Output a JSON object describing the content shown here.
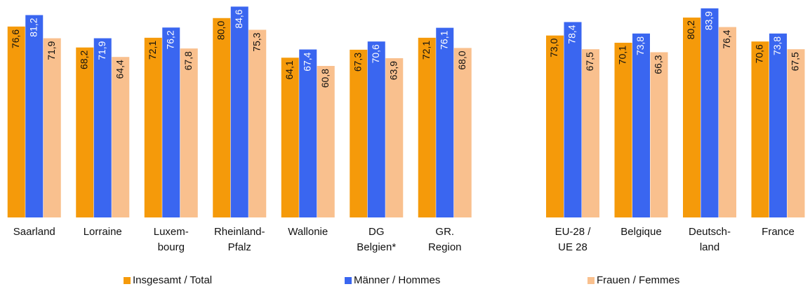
{
  "chart_data": {
    "type": "bar",
    "categories": [
      "Saarland",
      "Lorraine",
      "Luxem-\nbourg",
      "Rheinland-\nPfalz",
      "Wallonie",
      "DG\nBelgien*",
      "GR.\nRegion",
      "EU-28 /\nUE 28",
      "Belgique",
      "Deutsch-\nland",
      "France"
    ],
    "series": [
      {
        "name": "Insgesamt / Total",
        "color": "#f59a0a",
        "values": [
          76.6,
          68.2,
          72.1,
          80.0,
          64.1,
          67.3,
          72.1,
          73.0,
          70.1,
          80.2,
          70.6
        ],
        "value_labels": [
          "76,6",
          "68,2",
          "72,1",
          "80,0",
          "64,1",
          "67,3",
          "72,1",
          "73,0",
          "70,1",
          "80,2",
          "70,6"
        ]
      },
      {
        "name": "Männer / Hommes",
        "color": "#3a66f0",
        "values": [
          81.2,
          71.9,
          76.2,
          84.6,
          67.4,
          70.6,
          76.1,
          78.4,
          73.8,
          83.9,
          73.8
        ],
        "value_labels": [
          "81,2",
          "71,9",
          "76,2",
          "84,6",
          "67,4",
          "70,6",
          "76,1",
          "78,4",
          "73,8",
          "83,9",
          "73,8"
        ]
      },
      {
        "name": "Frauen / Femmes",
        "color": "#f9c08e",
        "values": [
          71.9,
          64.4,
          67.8,
          75.3,
          60.8,
          63.9,
          68.0,
          67.5,
          66.3,
          76.4,
          67.5
        ],
        "value_labels": [
          "71,9",
          "64,4",
          "67,8",
          "75,3",
          "60,8",
          "63,9",
          "68,0",
          "67,5",
          "66,3",
          "76,4",
          "67,5"
        ]
      }
    ],
    "ylim": [
      0,
      85
    ]
  }
}
